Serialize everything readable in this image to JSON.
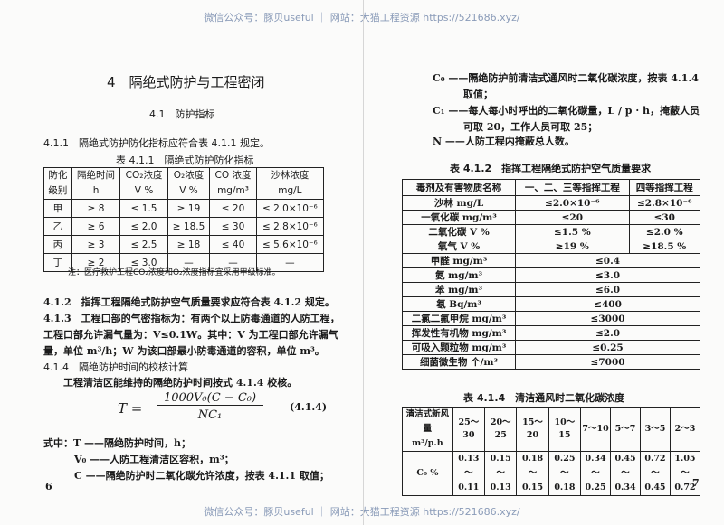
{
  "watermark": "微信公众号：豚贝useful ｜ 网站：大猫工程资源 https://521686.xyz/",
  "left": {
    "chapter_title": "4　隔绝式防护与工程密闭",
    "section": "4.1　防护指标",
    "p411": "4.1.1　隔绝式防护防化指标应符合表 4.1.1 规定。",
    "table1_caption": "表 4.1.1　隔绝式防护防化指标",
    "table1_headers": [
      [
        "防化",
        "级别"
      ],
      [
        "隔绝时间",
        "h"
      ],
      [
        "CO₂浓度",
        "V %"
      ],
      [
        "O₂浓度",
        "V %"
      ],
      [
        "CO 浓度",
        "mg/m³"
      ],
      [
        "沙林浓度",
        "mg/L"
      ]
    ],
    "table1_rows": [
      [
        "甲",
        "≥ 8",
        "≤ 1.5",
        "≥ 19",
        "≤ 20",
        "≤ 2.0×10⁻⁶"
      ],
      [
        "乙",
        "≥ 6",
        "≤ 2.0",
        "≥ 18.5",
        "≤ 30",
        "≤ 2.8×10⁻⁶"
      ],
      [
        "丙",
        "≥ 3",
        "≤ 2.5",
        "≥ 18",
        "≤ 40",
        "≤ 5.6×10⁻⁶"
      ],
      [
        "丁",
        "≥ 2",
        "≤ 3.0",
        "—",
        "—",
        "—"
      ]
    ],
    "table1_note": "注：医疗救护工程CO₂浓度和O₂浓度指标宜采用甲级标准。",
    "p412": "4.1.2　指挥工程隔绝式防护空气质量要求应符合表 4.1.2 规定。",
    "p413_1": "4.1.3　工程口部的气密指标为：有两个以上防毒通道的人防工程，",
    "p413_2": "工程口部允许漏气量为：V≤0.1W。其中：V 为工程口部允许漏气",
    "p413_3": "量，单位 m³/h；W 为该口部最小防毒通道的容积，单位 m³。",
    "p414": "4.1.4　隔绝防护时间的校核计算",
    "p414_body": "工程清洁区能维持的隔绝防护时间按式 4.1.4 校核。",
    "formula_lhs": "T =",
    "formula_num": "1000V₀(C − C₀)",
    "formula_den": "NC₁",
    "formula_no": "(4.1.4)",
    "where_T": "式中：T ——隔绝防护时间，h；",
    "where_V0": "V₀ ——人防工程清洁区容积，m³；",
    "where_C": "C ——隔绝防护时二氧化碳允许浓度，按表 4.1.1 取值；",
    "page_no": "6"
  },
  "right": {
    "c0_1": "C₀ ——隔绝防护前清洁式通风时二氧化碳浓度，按表 4.1.4",
    "c0_2": "取值；",
    "c1_1": "C₁ ——每人每小时呼出的二氧化碳量，L / p · h，掩蔽人员",
    "c1_2": "可取 20，工作人员可取 25；",
    "n": "N ——人防工程内掩蔽总人数。",
    "table2_caption": "表 4.1.2　指挥工程隔绝式防护空气质量要求",
    "table2_headers": [
      "毒剂及有害物质名称",
      "一、二、三等指挥工程",
      "四等指挥工程"
    ],
    "table2_split_rows": [
      [
        "沙林 mg/L",
        "≤2.0×10⁻⁶",
        "≤2.8×10⁻⁶"
      ],
      [
        "一氧化碳 mg/m³",
        "≤20",
        "≤30"
      ],
      [
        "二氧化碳 V %",
        "≤1.5 %",
        "≤2.0 %"
      ],
      [
        "氧气 V %",
        "≥19 %",
        "≥18.5 %"
      ]
    ],
    "table2_merged_rows": [
      [
        "甲醛 mg/m³",
        "≤0.4"
      ],
      [
        "氨 mg/m³",
        "≤3.0"
      ],
      [
        "苯 mg/m³",
        "≤6.0"
      ],
      [
        "氡 Bq/m³",
        "≤400"
      ],
      [
        "二氯二氟甲烷 mg/m³",
        "≤3000"
      ],
      [
        "挥发性有机物 mg/m³",
        "≤2.0"
      ],
      [
        "可吸入颗粒物 mg/m³",
        "≤0.25"
      ],
      [
        "细菌微生物 个/m³",
        "≤7000"
      ]
    ],
    "table4_caption": "表 4.1.4　清洁通风时二氧化碳浓度",
    "table4_header": [
      "清洁式新风量",
      "m³/p.h"
    ],
    "table4_ranges": [
      "25～30",
      "20～25",
      "15～20",
      "10～15",
      "7～10",
      "5～7",
      "3～5",
      "2～3"
    ],
    "table4_row_label": "C₀ %",
    "table4_values": [
      [
        "0.13～",
        "0.11"
      ],
      [
        "0.15～",
        "0.13"
      ],
      [
        "0.18～",
        "0.15"
      ],
      [
        "0.25～",
        "0.18"
      ],
      [
        "0.34～",
        "0.25"
      ],
      [
        "0.45～",
        "0.34"
      ],
      [
        "0.72～",
        "0.45"
      ],
      [
        "1.05～",
        "0.72"
      ]
    ],
    "page_no": "7"
  }
}
